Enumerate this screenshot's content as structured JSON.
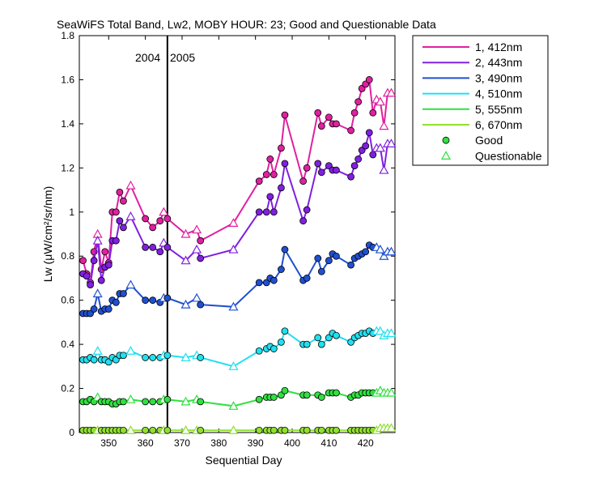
{
  "chart_data": {
    "type": "line",
    "title": "SeaWiFS Total Band,  Lw2, MOBY HOUR: 23;  Good and Questionable Data",
    "xlabel": "Sequential Day",
    "ylabel": "Lw (μW/cm²/sr/nm)",
    "xlim": [
      342,
      428
    ],
    "ylim": [
      0,
      1.8
    ],
    "xticks": [
      350,
      360,
      370,
      380,
      390,
      400,
      410,
      420
    ],
    "yticks": [
      0,
      0.2,
      0.4,
      0.6,
      0.8,
      1.0,
      1.2,
      1.4,
      1.6,
      1.8
    ],
    "ytick_labels": [
      "0",
      "0.2",
      "0.4",
      "0.6",
      "0.8",
      "1",
      "1.2",
      "1.4",
      "1.6",
      "1.8"
    ],
    "grid": false,
    "legend_position": "outside-right",
    "year_divider": {
      "x": 366,
      "left_label": "2004",
      "right_label": "2005"
    },
    "x": [
      343,
      344,
      345,
      346,
      347,
      348,
      349,
      350,
      351,
      352,
      353,
      354,
      356,
      360,
      362,
      364,
      365,
      366,
      371,
      374,
      375,
      384,
      391,
      393,
      394,
      395,
      397,
      398,
      403,
      404,
      407,
      408,
      410,
      411,
      412,
      416,
      417,
      418,
      419,
      420,
      421,
      422,
      423,
      424,
      425,
      426,
      427
    ],
    "quality": [
      "G",
      "G",
      "G",
      "G",
      "Q",
      "G",
      "G",
      "G",
      "G",
      "G",
      "G",
      "G",
      "Q",
      "G",
      "G",
      "G",
      "Q",
      "G",
      "Q",
      "Q",
      "G",
      "Q",
      "G",
      "G",
      "G",
      "G",
      "G",
      "G",
      "G",
      "G",
      "G",
      "G",
      "G",
      "G",
      "G",
      "G",
      "G",
      "G",
      "G",
      "G",
      "G",
      "G",
      "Q",
      "Q",
      "Q",
      "Q",
      "Q"
    ],
    "series": [
      {
        "name": "1, 412nm",
        "color": "#e020a0",
        "values": [
          0.78,
          0.72,
          0.68,
          0.82,
          0.9,
          0.74,
          0.82,
          0.77,
          1.0,
          1.0,
          1.09,
          1.05,
          1.12,
          0.97,
          0.93,
          0.96,
          1.0,
          0.97,
          0.9,
          0.92,
          0.87,
          0.95,
          1.14,
          1.17,
          1.24,
          1.17,
          1.29,
          1.44,
          1.14,
          1.2,
          1.45,
          1.39,
          1.43,
          1.4,
          1.4,
          1.37,
          1.45,
          1.5,
          1.56,
          1.58,
          1.6,
          1.45,
          1.51,
          1.5,
          1.39,
          1.54,
          1.54
        ]
      },
      {
        "name": "2, 443nm",
        "color": "#8020e0",
        "values": [
          0.72,
          0.71,
          0.67,
          0.78,
          0.87,
          0.69,
          0.75,
          0.76,
          0.87,
          0.87,
          0.96,
          0.93,
          0.98,
          0.84,
          0.84,
          0.82,
          0.86,
          0.84,
          0.78,
          0.83,
          0.79,
          0.83,
          1.0,
          1.0,
          1.07,
          1.0,
          1.11,
          1.22,
          0.96,
          1.01,
          1.22,
          1.18,
          1.21,
          1.19,
          1.19,
          1.16,
          1.21,
          1.24,
          1.28,
          1.3,
          1.36,
          1.26,
          1.29,
          1.29,
          1.19,
          1.31,
          1.31
        ]
      },
      {
        "name": "3, 490nm",
        "color": "#2050d0",
        "values": [
          0.54,
          0.54,
          0.54,
          0.56,
          0.63,
          0.55,
          0.56,
          0.56,
          0.6,
          0.59,
          0.63,
          0.63,
          0.67,
          0.6,
          0.6,
          0.59,
          0.61,
          0.61,
          0.58,
          0.61,
          0.58,
          0.57,
          0.68,
          0.68,
          0.7,
          0.69,
          0.74,
          0.83,
          0.69,
          0.7,
          0.79,
          0.73,
          0.78,
          0.81,
          0.8,
          0.76,
          0.79,
          0.8,
          0.81,
          0.82,
          0.85,
          0.84,
          0.84,
          0.83,
          0.8,
          0.82,
          0.82
        ]
      },
      {
        "name": "4, 510nm",
        "color": "#20e0f0",
        "values": [
          0.33,
          0.33,
          0.34,
          0.33,
          0.37,
          0.33,
          0.33,
          0.32,
          0.34,
          0.33,
          0.35,
          0.35,
          0.37,
          0.34,
          0.34,
          0.34,
          0.35,
          0.35,
          0.34,
          0.35,
          0.34,
          0.3,
          0.37,
          0.38,
          0.39,
          0.38,
          0.41,
          0.46,
          0.4,
          0.4,
          0.43,
          0.4,
          0.43,
          0.45,
          0.44,
          0.41,
          0.43,
          0.44,
          0.45,
          0.45,
          0.46,
          0.45,
          0.46,
          0.46,
          0.44,
          0.45,
          0.45
        ]
      },
      {
        "name": "5, 555nm",
        "color": "#30e040",
        "values": [
          0.14,
          0.14,
          0.15,
          0.14,
          0.16,
          0.14,
          0.14,
          0.14,
          0.13,
          0.13,
          0.14,
          0.14,
          0.15,
          0.14,
          0.14,
          0.14,
          0.15,
          0.15,
          0.14,
          0.15,
          0.14,
          0.12,
          0.15,
          0.16,
          0.16,
          0.16,
          0.17,
          0.19,
          0.17,
          0.17,
          0.17,
          0.16,
          0.18,
          0.18,
          0.18,
          0.16,
          0.17,
          0.17,
          0.18,
          0.18,
          0.18,
          0.18,
          0.18,
          0.19,
          0.18,
          0.18,
          0.18
        ]
      },
      {
        "name": "6, 670nm",
        "color": "#90e030",
        "values": [
          0.01,
          0.01,
          0.01,
          0.01,
          0.01,
          0.01,
          0.01,
          0.01,
          0.01,
          0.01,
          0.01,
          0.01,
          0.01,
          0.01,
          0.01,
          0.01,
          0.01,
          0.01,
          0.01,
          0.01,
          0.01,
          0.01,
          0.01,
          0.01,
          0.01,
          0.01,
          0.01,
          0.01,
          0.01,
          0.01,
          0.01,
          0.01,
          0.01,
          0.01,
          0.01,
          0.01,
          0.01,
          0.01,
          0.01,
          0.01,
          0.01,
          0.01,
          0.01,
          0.02,
          0.02,
          0.02,
          0.02
        ]
      }
    ],
    "marker_legend": [
      {
        "label": "Good",
        "marker": "filled-circle",
        "color": "#30e040"
      },
      {
        "label": "Questionable",
        "marker": "open-triangle",
        "color": "#30e040"
      }
    ]
  }
}
